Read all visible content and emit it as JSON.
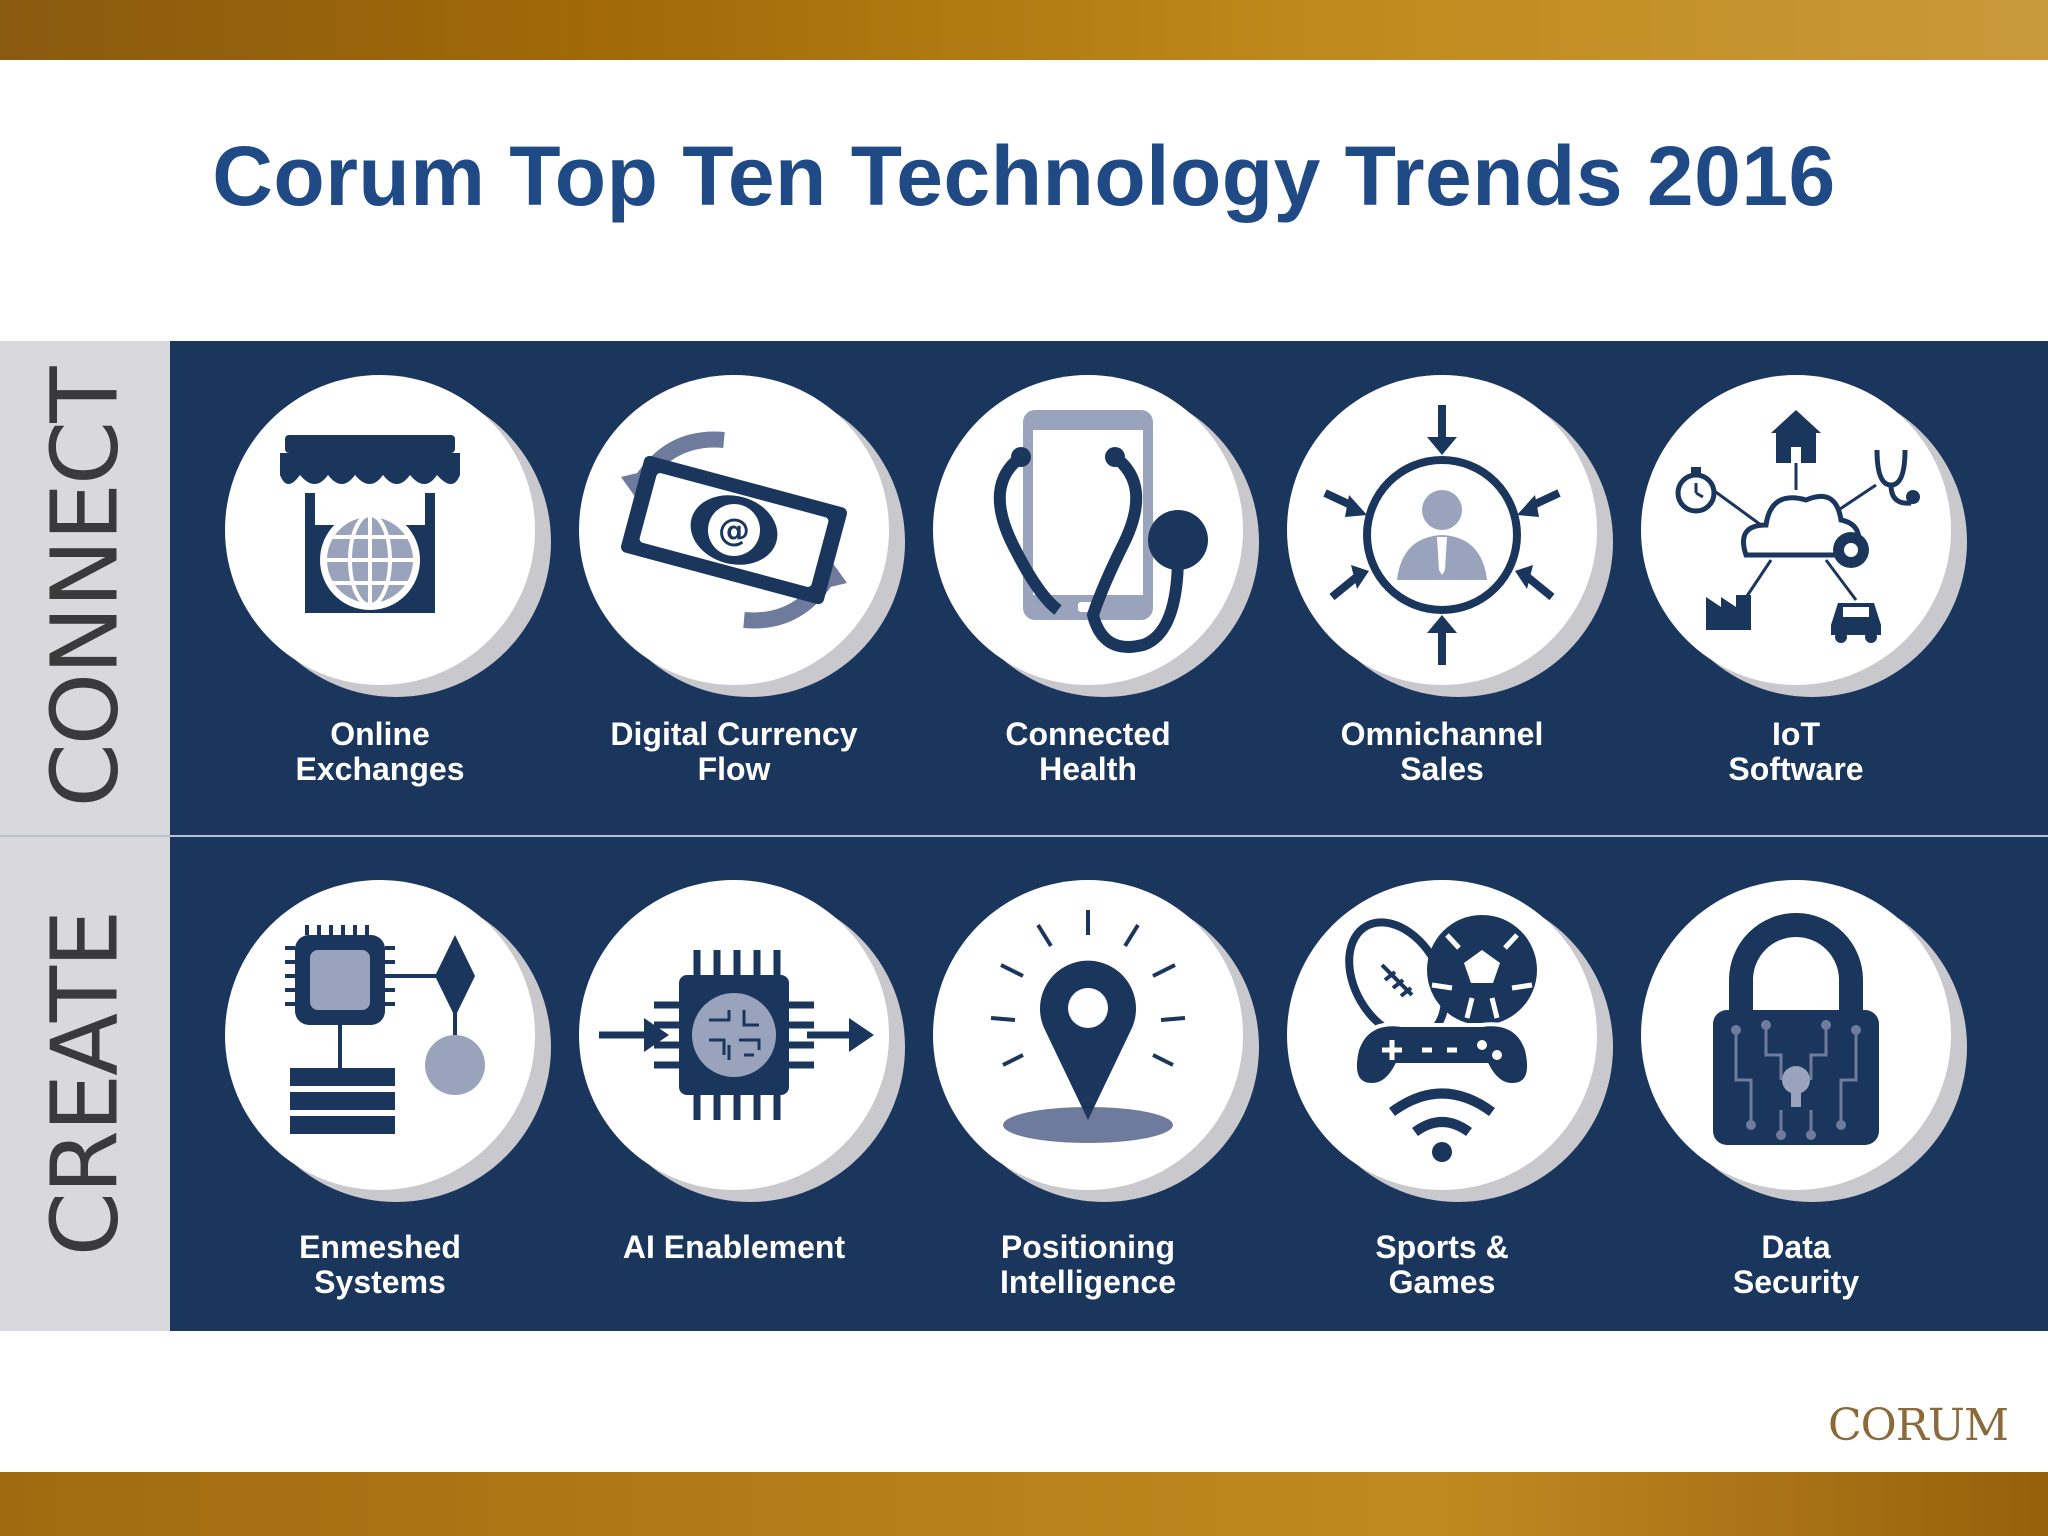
{
  "title": "Corum Top Ten Technology Trends 2016",
  "sections": {
    "connect": {
      "label": "CONNECT",
      "items": [
        {
          "line1": "Online",
          "line2": "Exchanges",
          "icon": "storefront-globe-icon"
        },
        {
          "line1": "Digital Currency",
          "line2": "Flow",
          "icon": "currency-exchange-icon"
        },
        {
          "line1": "Connected",
          "line2": "Health",
          "icon": "phone-stethoscope-icon"
        },
        {
          "line1": "Omnichannel",
          "line2": "Sales",
          "icon": "customer-target-icon"
        },
        {
          "line1": "IoT",
          "line2": "Software",
          "icon": "cloud-devices-icon"
        }
      ]
    },
    "create": {
      "label": "CREATE",
      "items": [
        {
          "line1": "Enmeshed",
          "line2": "Systems",
          "icon": "chip-flowchart-icon"
        },
        {
          "line1": "AI Enablement",
          "line2": "",
          "icon": "ai-processor-icon"
        },
        {
          "line1": "Positioning",
          "line2": "Intelligence",
          "icon": "location-pin-icon"
        },
        {
          "line1": "Sports &",
          "line2": "Games",
          "icon": "sports-gamepad-icon"
        },
        {
          "line1": "Data",
          "line2": "Security",
          "icon": "circuit-lock-icon"
        }
      ]
    }
  },
  "logo": "CORUM",
  "colors": {
    "navy": "#1b365d",
    "title_blue": "#1f4a86",
    "gold": "#b37d18",
    "side_gray": "#d9d8dc",
    "icon_light": "#9aa3bc"
  }
}
